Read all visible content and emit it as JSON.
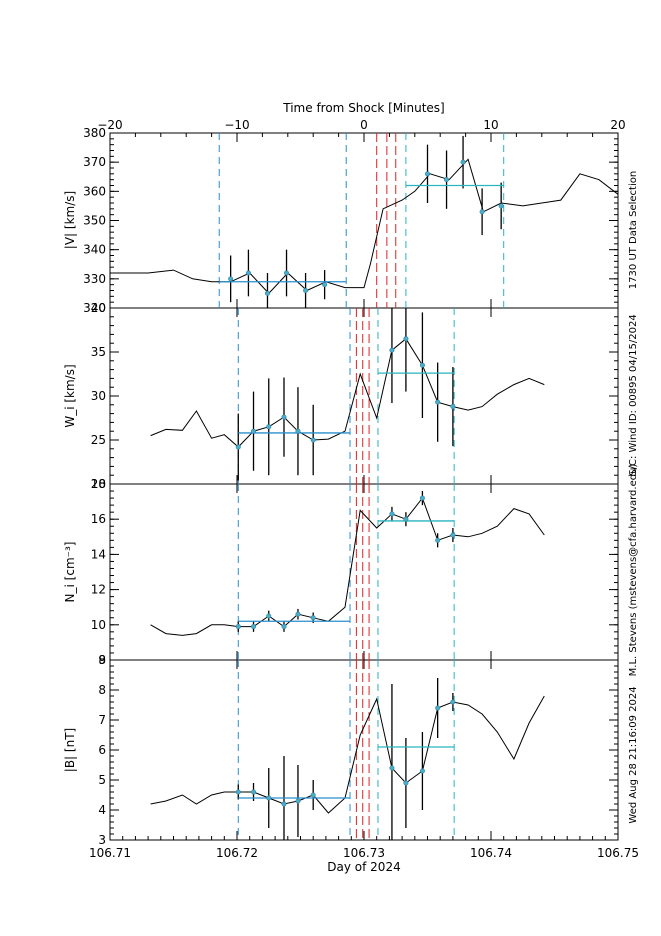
{
  "chart_data": {
    "type": "line",
    "top_axis": {
      "label": "Time from Shock [Minutes]",
      "range": [
        -20,
        20
      ],
      "ticks": [
        -20,
        -10,
        0,
        10,
        20
      ],
      "tick_labels": [
        "−20",
        "−10",
        "0",
        "10",
        "20"
      ]
    },
    "x_axis": {
      "label": "Day of 2024",
      "range": [
        106.71,
        106.75
      ],
      "ticks": [
        106.71,
        106.72,
        106.73,
        106.74,
        106.75
      ],
      "tick_labels": [
        "106.71",
        "106.72",
        "106.73",
        "106.74",
        "106.75"
      ]
    },
    "side_labels": {
      "selection": "1730 UT Data Selection",
      "spacecraft": "S/C: Wind ID: 00895 04/15/2024",
      "author": "M.L. Stevens (mstevens@cfa.harvard.edu)",
      "timestamp": "Wed Aug 28 21:16:09 2024"
    },
    "colors": {
      "trace": "#000000",
      "upstream": "#2a8fcc",
      "downstream": "#2ab3c0",
      "shock": "#dd2222",
      "marker": "#4aaec8"
    },
    "panels": [
      {
        "id": "speed",
        "ylabel": "|V| [km/s]",
        "ylim": [
          320,
          380
        ],
        "yticks": [
          320,
          330,
          340,
          350,
          360,
          370,
          380
        ],
        "trace": {
          "x": [
            -20,
            -17,
            -15,
            -13.5,
            -12,
            -10.5,
            -9,
            -7.5,
            -6,
            -4.5,
            -3,
            -1.5,
            0,
            0.5,
            1.5,
            3,
            4,
            5.2,
            6.7,
            8.2,
            9.4,
            10.8,
            12.5,
            14,
            15.5,
            17,
            18.5,
            20
          ],
          "y": [
            332,
            332,
            333,
            330,
            329,
            329,
            332,
            325,
            332,
            326,
            329,
            327,
            327,
            335,
            354,
            357,
            360,
            366,
            364,
            371,
            353,
            356,
            355,
            356,
            357,
            366,
            364,
            359
          ]
        },
        "points": [
          {
            "x": -10.5,
            "y": 330,
            "err": 8
          },
          {
            "x": -9.1,
            "y": 332,
            "err": 8
          },
          {
            "x": -7.6,
            "y": 325,
            "err": 7
          },
          {
            "x": -6.1,
            "y": 332,
            "err": 8
          },
          {
            "x": -4.6,
            "y": 326,
            "err": 6
          },
          {
            "x": -3.1,
            "y": 328,
            "err": 5
          },
          {
            "x": 5,
            "y": 366,
            "err": 10
          },
          {
            "x": 6.5,
            "y": 364,
            "err": 10
          },
          {
            "x": 7.8,
            "y": 370,
            "err": 9
          },
          {
            "x": 9.3,
            "y": 353,
            "err": 8
          },
          {
            "x": 10.8,
            "y": 355,
            "err": 8
          }
        ],
        "upstream_mean": {
          "x0": -11.4,
          "x1": -1.4,
          "y": 329
        },
        "downstream_mean": {
          "x0": 3.3,
          "x1": 11,
          "y": 362
        },
        "upstream_bounds": [
          -11.4,
          -1.4
        ],
        "downstream_bounds": [
          3.3,
          11
        ],
        "shock_lines": [
          1,
          1.8,
          2.5
        ]
      },
      {
        "id": "thermal",
        "ylabel": "W_i [km/s]",
        "ylim": [
          20,
          40
        ],
        "yticks": [
          20,
          25,
          30,
          35,
          40
        ],
        "trace": {
          "x": [
            -16.8,
            -15.6,
            -14.3,
            -13.2,
            -12,
            -11,
            -9.9,
            -8.7,
            -7.5,
            -6.3,
            -5.2,
            -4,
            -2.8,
            -1.5,
            -0.3,
            1,
            2.2,
            3.3,
            4.6,
            5.8,
            7,
            8.2,
            9.3,
            10.5,
            11.8,
            13,
            14.2
          ],
          "y": [
            25.5,
            26.2,
            26.1,
            28.3,
            25.2,
            25.6,
            24.2,
            26,
            26.5,
            27.6,
            26,
            25,
            25.1,
            26,
            32.5,
            27.5,
            35.2,
            36.5,
            33.5,
            29.3,
            28.8,
            28.4,
            28.8,
            30.2,
            31.3,
            32,
            31.3
          ]
        },
        "points": [
          {
            "x": -9.9,
            "y": 24.2,
            "err": 3.8
          },
          {
            "x": -8.7,
            "y": 26,
            "err": 4.5
          },
          {
            "x": -7.5,
            "y": 26.5,
            "err": 5.5
          },
          {
            "x": -6.3,
            "y": 27.6,
            "err": 4.5
          },
          {
            "x": -5.2,
            "y": 26,
            "err": 5
          },
          {
            "x": -4,
            "y": 25,
            "err": 4
          },
          {
            "x": 2.2,
            "y": 35.2,
            "err": 6
          },
          {
            "x": 3.3,
            "y": 36.5,
            "err": 6
          },
          {
            "x": 4.6,
            "y": 33.5,
            "err": 6
          },
          {
            "x": 5.8,
            "y": 29.3,
            "err": 4.5
          },
          {
            "x": 7,
            "y": 28.8,
            "err": 4.5
          }
        ],
        "upstream_mean": {
          "x0": -9.9,
          "x1": -1.1,
          "y": 25.8
        },
        "downstream_mean": {
          "x0": 1.1,
          "x1": 7.1,
          "y": 32.6
        },
        "upstream_bounds": [
          -9.9,
          -1.1
        ],
        "downstream_bounds": [
          1.1,
          7.1
        ],
        "shock_lines": [
          -0.6,
          -0.1,
          0.4
        ]
      },
      {
        "id": "density",
        "ylabel": "N_i [cm⁻³]",
        "ylim": [
          8,
          18
        ],
        "yticks": [
          8,
          10,
          12,
          14,
          16,
          18
        ],
        "trace": {
          "x": [
            -16.8,
            -15.6,
            -14.3,
            -13.2,
            -12,
            -11,
            -9.9,
            -8.7,
            -7.5,
            -6.3,
            -5.2,
            -4,
            -2.8,
            -1.5,
            -0.3,
            1,
            2.2,
            3.3,
            4.6,
            5.8,
            7,
            8.2,
            9.3,
            10.5,
            11.8,
            13,
            14.2
          ],
          "y": [
            10,
            9.5,
            9.4,
            9.5,
            10,
            10,
            9.9,
            9.9,
            10.5,
            9.9,
            10.6,
            10.4,
            10.2,
            11,
            16.5,
            15.5,
            16.3,
            16,
            17.2,
            14.8,
            15.1,
            15,
            15.2,
            15.6,
            16.6,
            16.3,
            15.1
          ]
        },
        "points": [
          {
            "x": -9.9,
            "y": 9.9,
            "err": 0.3
          },
          {
            "x": -8.7,
            "y": 9.9,
            "err": 0.3
          },
          {
            "x": -7.5,
            "y": 10.5,
            "err": 0.3
          },
          {
            "x": -6.3,
            "y": 9.9,
            "err": 0.3
          },
          {
            "x": -5.2,
            "y": 10.6,
            "err": 0.3
          },
          {
            "x": -4,
            "y": 10.4,
            "err": 0.3
          },
          {
            "x": 2.2,
            "y": 16.3,
            "err": 0.4
          },
          {
            "x": 3.3,
            "y": 16,
            "err": 0.4
          },
          {
            "x": 4.6,
            "y": 17.2,
            "err": 0.4
          },
          {
            "x": 5.8,
            "y": 14.8,
            "err": 0.4
          },
          {
            "x": 7,
            "y": 15.1,
            "err": 0.4
          }
        ],
        "upstream_mean": {
          "x0": -9.9,
          "x1": -1.1,
          "y": 10.2
        },
        "downstream_mean": {
          "x0": 1.1,
          "x1": 7.1,
          "y": 15.9
        },
        "upstream_bounds": [
          -9.9,
          -1.1
        ],
        "downstream_bounds": [
          1.1,
          7.1
        ],
        "shock_lines": [
          -0.6,
          -0.1,
          0.4
        ]
      },
      {
        "id": "field",
        "ylabel": "|B| [nT]",
        "ylim": [
          3,
          9
        ],
        "yticks": [
          3,
          4,
          5,
          6,
          7,
          8,
          9
        ],
        "trace": {
          "x": [
            -16.8,
            -15.6,
            -14.3,
            -13.2,
            -12,
            -11,
            -9.9,
            -8.7,
            -7.5,
            -6.3,
            -5.2,
            -4,
            -2.8,
            -1.5,
            -0.3,
            1,
            2.2,
            3.3,
            4.6,
            5.8,
            7,
            8.2,
            9.3,
            10.5,
            11.8,
            13,
            14.2
          ],
          "y": [
            4.2,
            4.3,
            4.5,
            4.2,
            4.5,
            4.6,
            4.6,
            4.6,
            4.4,
            4.2,
            4.3,
            4.5,
            3.9,
            4.4,
            6.5,
            7.7,
            5.4,
            4.9,
            5.3,
            7.4,
            7.6,
            7.5,
            7.2,
            6.6,
            5.7,
            6.9,
            7.8
          ]
        },
        "points": [
          {
            "x": -9.9,
            "y": 4.6,
            "err": 0.25
          },
          {
            "x": -8.7,
            "y": 4.6,
            "err": 0.3
          },
          {
            "x": -7.5,
            "y": 4.4,
            "err": 1
          },
          {
            "x": -6.3,
            "y": 4.2,
            "err": 1.6
          },
          {
            "x": -5.2,
            "y": 4.3,
            "err": 1.2
          },
          {
            "x": -4,
            "y": 4.5,
            "err": 0.5
          },
          {
            "x": 2.2,
            "y": 5.4,
            "err": 2.8
          },
          {
            "x": 3.3,
            "y": 4.9,
            "err": 1.5
          },
          {
            "x": 4.6,
            "y": 5.3,
            "err": 1.3
          },
          {
            "x": 5.8,
            "y": 7.4,
            "err": 1
          },
          {
            "x": 7,
            "y": 7.6,
            "err": 0.3
          }
        ],
        "upstream_mean": {
          "x0": -9.9,
          "x1": -1.1,
          "y": 4.4
        },
        "downstream_mean": {
          "x0": 1.1,
          "x1": 7.1,
          "y": 6.1
        },
        "upstream_bounds": [
          -9.9,
          -1.1
        ],
        "downstream_bounds": [
          1.1,
          7.1
        ],
        "shock_lines": [
          -0.6,
          -0.1,
          0.4
        ]
      }
    ]
  }
}
